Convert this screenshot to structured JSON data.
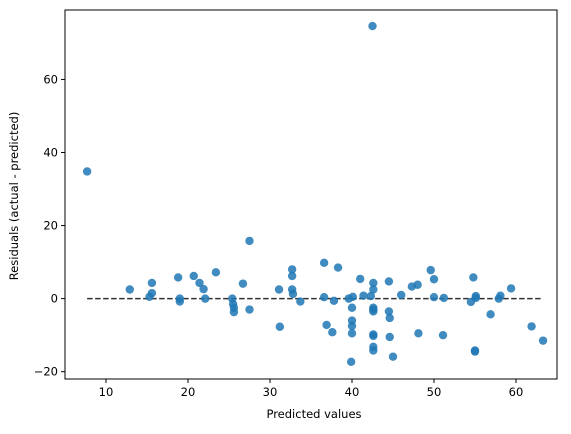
{
  "chart_data": {
    "type": "scatter",
    "title": "",
    "xlabel": "Predicted values",
    "ylabel": "Residuals (actual - predicted)",
    "xlim": [
      5,
      65
    ],
    "ylim": [
      -22,
      79
    ],
    "xticks": [
      10,
      20,
      30,
      40,
      50,
      60
    ],
    "yticks": [
      -20,
      0,
      20,
      40,
      60
    ],
    "grid": false,
    "legend": "none",
    "reference_line": {
      "y": 0,
      "x_from": 7.7,
      "x_to": 63.0,
      "style": "dashed",
      "color": "#333333"
    },
    "series": [
      {
        "color": "#1f77b4",
        "points": [
          [
            7.7,
            34.8
          ],
          [
            12.9,
            2.5
          ],
          [
            15.3,
            0.5
          ],
          [
            15.6,
            4.3
          ],
          [
            15.6,
            1.5
          ],
          [
            18.8,
            5.8
          ],
          [
            19.0,
            0.0
          ],
          [
            19.0,
            -0.8
          ],
          [
            20.7,
            6.2
          ],
          [
            21.4,
            4.3
          ],
          [
            21.9,
            2.6
          ],
          [
            22.1,
            0.0
          ],
          [
            23.4,
            7.2
          ],
          [
            25.4,
            0.0
          ],
          [
            25.5,
            -1.5
          ],
          [
            25.6,
            -2.5
          ],
          [
            25.6,
            -3.7
          ],
          [
            26.7,
            4.1
          ],
          [
            27.5,
            15.8
          ],
          [
            27.5,
            -3.0
          ],
          [
            31.1,
            2.5
          ],
          [
            31.2,
            -7.7
          ],
          [
            32.7,
            8.0
          ],
          [
            32.7,
            6.2
          ],
          [
            32.7,
            2.5
          ],
          [
            32.8,
            1.3
          ],
          [
            33.7,
            -0.8
          ],
          [
            36.6,
            9.8
          ],
          [
            36.6,
            0.4
          ],
          [
            36.9,
            -7.2
          ],
          [
            37.6,
            -9.2
          ],
          [
            37.8,
            -0.6
          ],
          [
            38.3,
            8.5
          ],
          [
            39.6,
            0.0
          ],
          [
            39.9,
            -17.3
          ],
          [
            40.0,
            -2.5
          ],
          [
            40.0,
            -6.0
          ],
          [
            40.0,
            -7.5
          ],
          [
            40.0,
            -9.5
          ],
          [
            40.1,
            0.5
          ],
          [
            41.0,
            5.4
          ],
          [
            41.4,
            0.8
          ],
          [
            42.3,
            0.7
          ],
          [
            42.5,
            74.6
          ],
          [
            42.6,
            4.3
          ],
          [
            42.6,
            2.5
          ],
          [
            42.6,
            -2.5
          ],
          [
            42.6,
            -3.0
          ],
          [
            42.6,
            -3.5
          ],
          [
            42.6,
            -9.8
          ],
          [
            42.6,
            -10.2
          ],
          [
            42.6,
            -13.2
          ],
          [
            42.6,
            -14.2
          ],
          [
            44.5,
            4.7
          ],
          [
            44.5,
            -3.5
          ],
          [
            44.6,
            -5.3
          ],
          [
            44.6,
            -10.5
          ],
          [
            45.0,
            -15.9
          ],
          [
            46.0,
            1.0
          ],
          [
            47.3,
            3.3
          ],
          [
            48.0,
            3.8
          ],
          [
            48.1,
            -9.5
          ],
          [
            49.6,
            7.8
          ],
          [
            50.0,
            5.3
          ],
          [
            50.0,
            0.4
          ],
          [
            51.1,
            -10.0
          ],
          [
            51.2,
            0.2
          ],
          [
            54.5,
            -0.9
          ],
          [
            54.8,
            5.8
          ],
          [
            55.0,
            -14.2
          ],
          [
            55.0,
            -14.5
          ],
          [
            55.1,
            0.7
          ],
          [
            55.1,
            0.2
          ],
          [
            56.9,
            -4.3
          ],
          [
            57.9,
            0.0
          ],
          [
            58.1,
            0.8
          ],
          [
            59.4,
            2.8
          ],
          [
            61.9,
            -7.6
          ],
          [
            63.3,
            -11.5
          ]
        ]
      }
    ]
  }
}
